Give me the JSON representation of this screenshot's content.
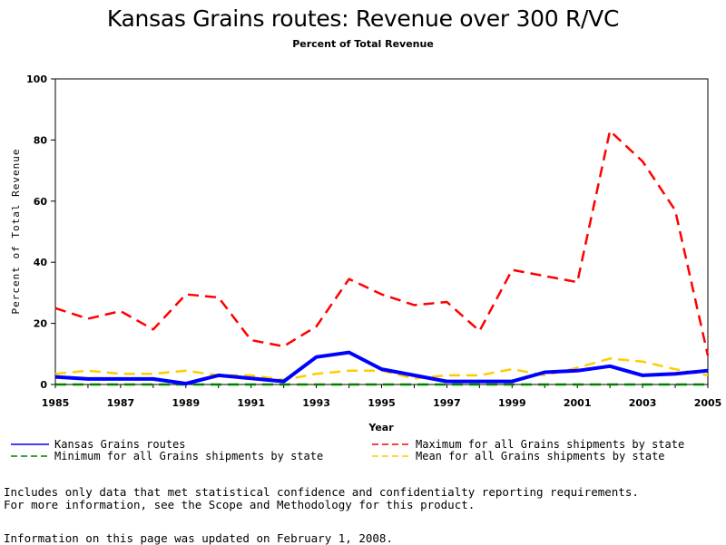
{
  "title": "Kansas Grains routes: Revenue over 300 R/VC",
  "subtitle": "Percent of Total Revenue",
  "notes": {
    "line1": "Includes only data that met statistical confidence and confidentialty reporting requirements.",
    "line2": "For more information, see the Scope and Methodology for this product.",
    "line3": "Information on this page was updated on February 1, 2008."
  },
  "chart_data": {
    "type": "line",
    "xlabel": "Year",
    "ylabel": "Percent of Total Revenue",
    "xlim": [
      1985,
      2005
    ],
    "ylim": [
      0,
      100
    ],
    "xticks": [
      "1985",
      "1987",
      "1989",
      "1991",
      "1993",
      "1995",
      "1997",
      "1999",
      "2001",
      "2003",
      "2005"
    ],
    "yticks": [
      "0",
      "20",
      "40",
      "60",
      "80",
      "100"
    ],
    "grid": false,
    "legend_position": "bottom",
    "x": [
      1985,
      1986,
      1987,
      1988,
      1989,
      1990,
      1991,
      1992,
      1993,
      1994,
      1995,
      1996,
      1997,
      1998,
      1999,
      2000,
      2001,
      2002,
      2003,
      2004,
      2005
    ],
    "series": [
      {
        "name": "Kansas Grains routes",
        "color": "#0000ff",
        "dash": "solid",
        "values": [
          2.5,
          1.8,
          1.8,
          1.8,
          0.3,
          3.0,
          2.0,
          1.0,
          9.0,
          10.5,
          5.0,
          3.0,
          1.0,
          1.0,
          1.0,
          4.0,
          4.5,
          6.0,
          3.0,
          3.5,
          4.5
        ]
      },
      {
        "name": "Maximum for all Grains shipments by state",
        "color": "#ff0000",
        "dash": "dashed",
        "values": [
          25.0,
          21.5,
          24.0,
          18.0,
          29.5,
          28.5,
          14.5,
          12.5,
          19.0,
          34.5,
          29.5,
          26.0,
          27.0,
          17.5,
          37.5,
          35.5,
          33.5,
          83.0,
          73.0,
          57.0,
          9.5
        ]
      },
      {
        "name": "Minimum for all Grains shipments by state",
        "color": "#008000",
        "dash": "dashed",
        "values": [
          0,
          0,
          0,
          0,
          0,
          0,
          0,
          0,
          0,
          0,
          0,
          0,
          0,
          0,
          0,
          0,
          0,
          0,
          0,
          0,
          0
        ]
      },
      {
        "name": "Mean for all Grains shipments by state",
        "color": "#ffcc00",
        "dash": "dashed",
        "values": [
          3.5,
          4.5,
          3.5,
          3.5,
          4.5,
          3.0,
          3.0,
          1.5,
          3.5,
          4.5,
          4.5,
          2.0,
          3.0,
          3.0,
          5.0,
          3.0,
          5.5,
          8.5,
          7.5,
          5.0,
          3.0
        ]
      }
    ]
  }
}
